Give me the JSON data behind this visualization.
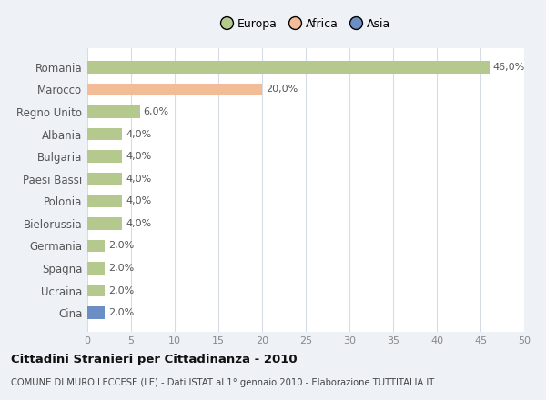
{
  "countries": [
    "Romania",
    "Marocco",
    "Regno Unito",
    "Albania",
    "Bulgaria",
    "Paesi Bassi",
    "Polonia",
    "Bielorussia",
    "Germania",
    "Spagna",
    "Ucraina",
    "Cina"
  ],
  "values": [
    46.0,
    20.0,
    6.0,
    4.0,
    4.0,
    4.0,
    4.0,
    4.0,
    2.0,
    2.0,
    2.0,
    2.0
  ],
  "colors": [
    "#b5c98e",
    "#f2bc96",
    "#b5c98e",
    "#b5c98e",
    "#b5c98e",
    "#b5c98e",
    "#b5c98e",
    "#b5c98e",
    "#b5c98e",
    "#b5c98e",
    "#b5c98e",
    "#6b8ec4"
  ],
  "legend_labels": [
    "Europa",
    "Africa",
    "Asia"
  ],
  "legend_colors": [
    "#b5c98e",
    "#f2bc96",
    "#6b8ec4"
  ],
  "xlim": [
    0,
    50
  ],
  "xticks": [
    0,
    5,
    10,
    15,
    20,
    25,
    30,
    35,
    40,
    45,
    50
  ],
  "title": "Cittadini Stranieri per Cittadinanza - 2010",
  "subtitle": "COMUNE DI MURO LECCESE (LE) - Dati ISTAT al 1° gennaio 2010 - Elaborazione TUTTITALIA.IT",
  "bg_color": "#eef2f7",
  "plot_bg_color": "#ffffff"
}
